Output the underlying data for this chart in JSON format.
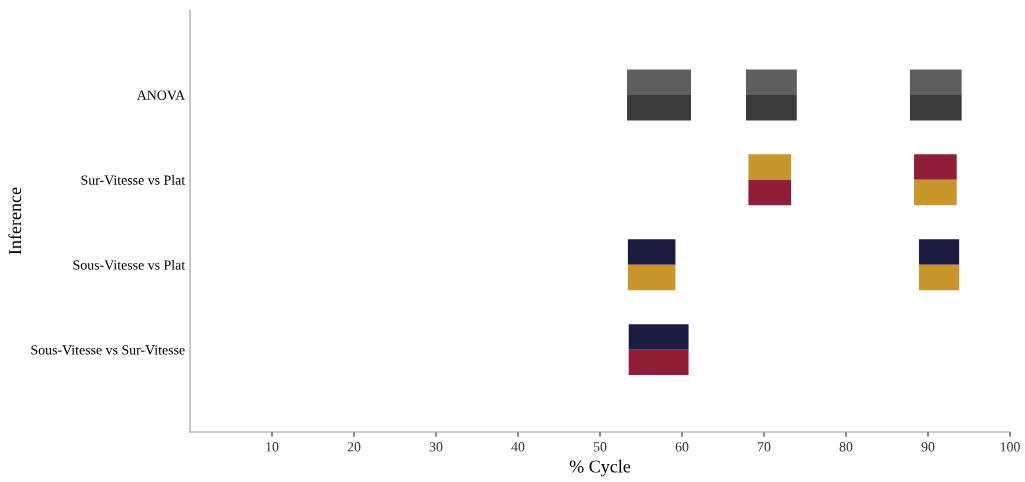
{
  "chart_data": {
    "type": "bar",
    "orientation": "horizontal",
    "xlabel": "% Cycle",
    "ylabel": "Inference",
    "categories": [
      "ANOVA",
      "Sur-Vitesse vs Plat",
      "Sous-Vitesse vs Plat",
      "Sous-Vitesse vs Sur-Vitesse"
    ],
    "xlim": [
      0,
      100
    ],
    "xticks": [
      10,
      20,
      30,
      40,
      50,
      60,
      70,
      80,
      90,
      100
    ],
    "grid": false,
    "legend": false,
    "series": [
      {
        "values": [
          7.8,
          null,
          5.8,
          7.3
        ],
        "base": [
          53.3,
          null,
          53.4,
          53.5
        ],
        "colors": [
          "#5e5e5e",
          null,
          "#1c1c40",
          "#1c1c40"
        ]
      },
      {
        "values": [
          6.2,
          5.2,
          null,
          null
        ],
        "base": [
          67.8,
          68.1,
          null,
          null
        ],
        "colors": [
          "#5e5e5e",
          "#c8962a",
          null,
          null
        ]
      },
      {
        "values": [
          6.3,
          5.2,
          4.9,
          null
        ],
        "base": [
          87.8,
          88.3,
          88.9,
          null
        ],
        "colors": [
          "#5e5e5e",
          "#8e1d35",
          "#1c1c40",
          null
        ]
      },
      {
        "values": [
          7.8,
          null,
          5.8,
          7.3
        ],
        "base": [
          53.3,
          null,
          53.4,
          53.5
        ],
        "colors": [
          "#3a3a3a",
          null,
          "#c8962a",
          "#8e1d35"
        ]
      },
      {
        "values": [
          6.2,
          5.2,
          null,
          null
        ],
        "base": [
          67.8,
          68.1,
          null,
          null
        ],
        "colors": [
          "#3a3a3a",
          "#8e1d35",
          null,
          null
        ]
      },
      {
        "values": [
          6.3,
          5.2,
          4.9,
          null
        ],
        "base": [
          87.8,
          88.3,
          88.9,
          null
        ],
        "colors": [
          "#3a3a3a",
          "#c8962a",
          "#c8962a",
          null
        ]
      }
    ]
  }
}
